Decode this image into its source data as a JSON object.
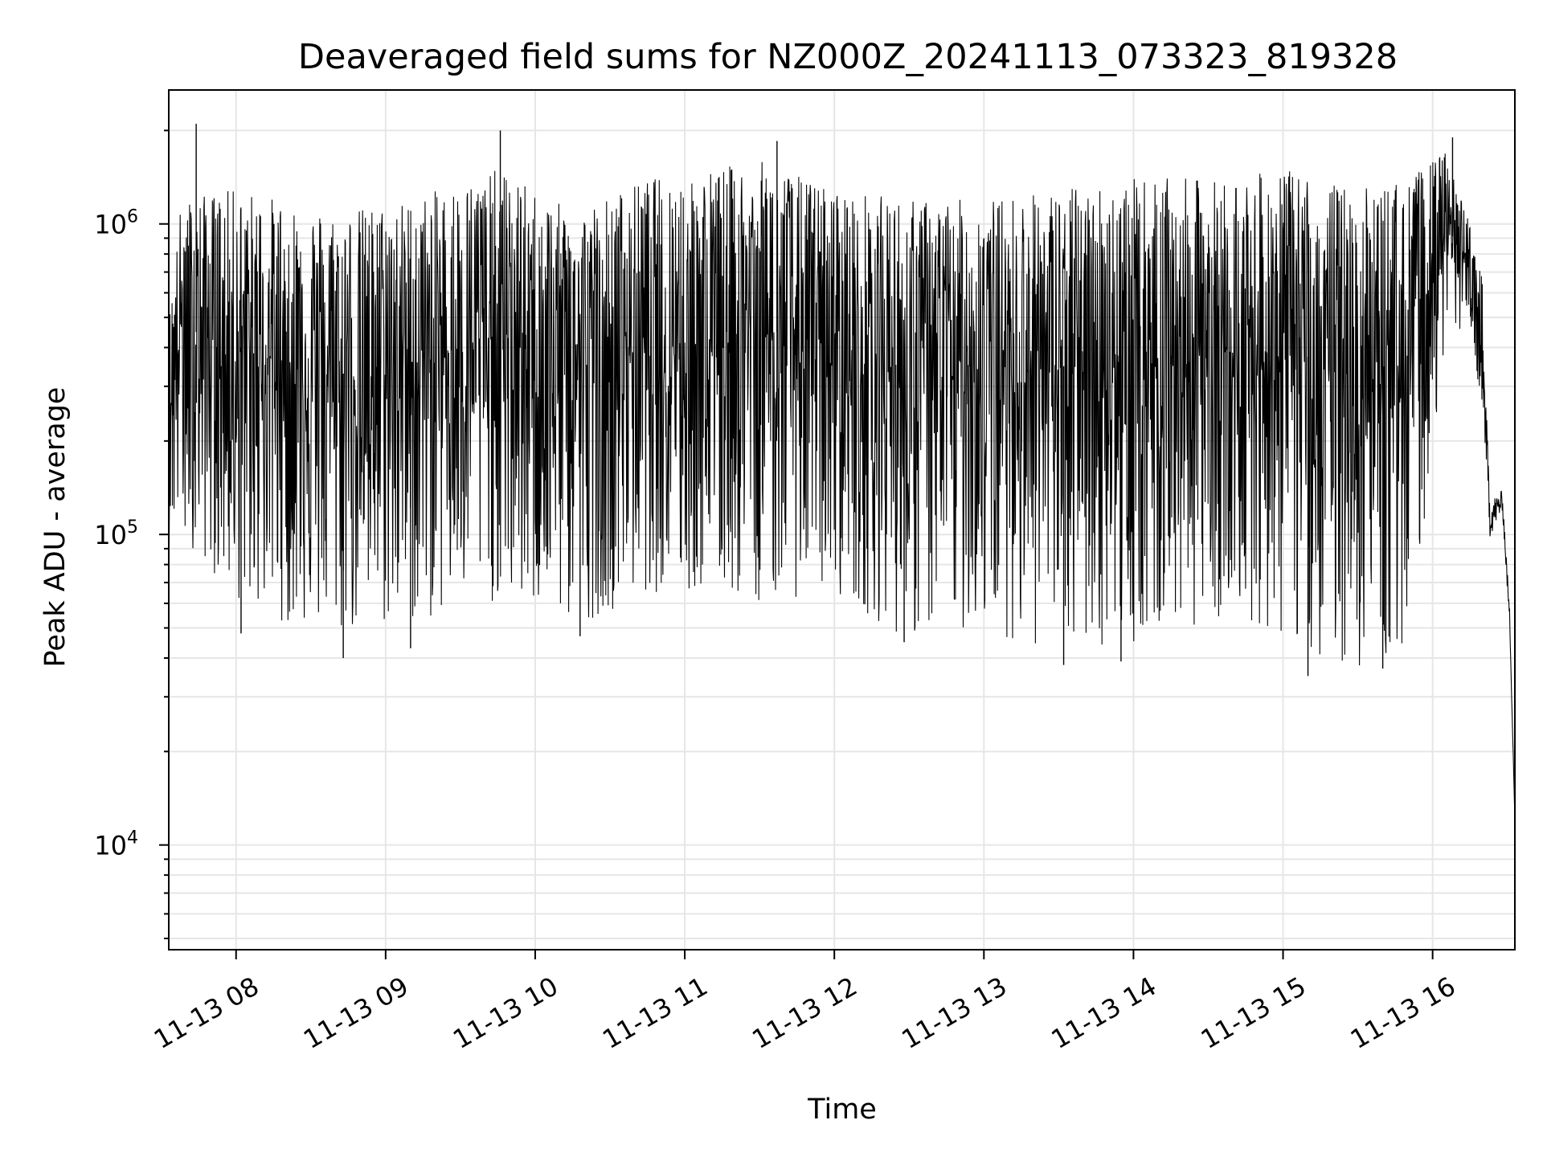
{
  "chart_data": {
    "type": "line",
    "title": "Deaveraged field sums for NZ000Z_20241113_073323_819328",
    "xlabel": "Time",
    "ylabel": "Peak ADU - average",
    "x_type": "time",
    "xlim": [
      "2024-11-13 07:33",
      "2024-11-13 16:33"
    ],
    "x_ticks": [
      {
        "t": "2024-11-13 08:00",
        "label": "11-13 08"
      },
      {
        "t": "2024-11-13 09:00",
        "label": "11-13 09"
      },
      {
        "t": "2024-11-13 10:00",
        "label": "11-13 10"
      },
      {
        "t": "2024-11-13 11:00",
        "label": "11-13 11"
      },
      {
        "t": "2024-11-13 12:00",
        "label": "11-13 12"
      },
      {
        "t": "2024-11-13 13:00",
        "label": "11-13 13"
      },
      {
        "t": "2024-11-13 14:00",
        "label": "11-13 14"
      },
      {
        "t": "2024-11-13 15:00",
        "label": "11-13 15"
      },
      {
        "t": "2024-11-13 16:00",
        "label": "11-13 16"
      }
    ],
    "y_scale": "log",
    "ylim": [
      4600,
      2700000
    ],
    "y_ticks": [
      {
        "value": 10000,
        "base": "10",
        "exp": "4"
      },
      {
        "value": 100000,
        "base": "10",
        "exp": "5"
      },
      {
        "value": 1000000,
        "base": "10",
        "exp": "6"
      }
    ],
    "grid": true,
    "line_color": "#000000",
    "grid_color": "#e6e6e6",
    "envelope": [
      {
        "t": "2024-11-13 07:33",
        "low": 95000,
        "high": 500000
      },
      {
        "t": "2024-11-13 07:38",
        "low": 100000,
        "high": 1200000
      },
      {
        "t": "2024-11-13 08:00",
        "low": 60000,
        "high": 1300000
      },
      {
        "t": "2024-11-13 08:40",
        "low": 45000,
        "high": 1100000
      },
      {
        "t": "2024-11-13 09:10",
        "low": 50000,
        "high": 1200000
      },
      {
        "t": "2024-11-13 09:45",
        "low": 60000,
        "high": 1500000
      },
      {
        "t": "2024-11-13 10:15",
        "low": 50000,
        "high": 1100000
      },
      {
        "t": "2024-11-13 10:45",
        "low": 65000,
        "high": 1400000
      },
      {
        "t": "2024-11-13 11:30",
        "low": 60000,
        "high": 1600000
      },
      {
        "t": "2024-11-13 12:00",
        "low": 65000,
        "high": 1300000
      },
      {
        "t": "2024-11-13 12:30",
        "low": 45000,
        "high": 1200000
      },
      {
        "t": "2024-11-13 13:00",
        "low": 50000,
        "high": 1200000
      },
      {
        "t": "2024-11-13 13:30",
        "low": 40000,
        "high": 1300000
      },
      {
        "t": "2024-11-13 14:00",
        "low": 45000,
        "high": 1400000
      },
      {
        "t": "2024-11-13 14:40",
        "low": 55000,
        "high": 1400000
      },
      {
        "t": "2024-11-13 15:00",
        "low": 45000,
        "high": 1500000
      },
      {
        "t": "2024-11-13 15:30",
        "low": 36000,
        "high": 1300000
      },
      {
        "t": "2024-11-13 15:50",
        "low": 40000,
        "high": 1400000
      },
      {
        "t": "2024-11-13 16:05",
        "low": 400000,
        "high": 1700000
      },
      {
        "t": "2024-11-13 16:15",
        "low": 500000,
        "high": 1000000
      },
      {
        "t": "2024-11-13 16:20",
        "low": 200000,
        "high": 700000
      },
      {
        "t": "2024-11-13 16:23",
        "low": 85000,
        "high": 150000
      },
      {
        "t": "2024-11-13 16:28",
        "low": 110000,
        "high": 150000
      },
      {
        "t": "2024-11-13 16:31",
        "low": 45000,
        "high": 60000
      },
      {
        "t": "2024-11-13 16:33",
        "low": 12000,
        "high": 12000
      }
    ],
    "spikes": [
      {
        "t": "2024-11-13 07:44",
        "value": 2100000
      },
      {
        "t": "2024-11-13 08:02",
        "value": 48000
      },
      {
        "t": "2024-11-13 08:43",
        "value": 40000
      },
      {
        "t": "2024-11-13 09:10",
        "value": 43000
      },
      {
        "t": "2024-11-13 09:46",
        "value": 2000000
      },
      {
        "t": "2024-11-13 10:18",
        "value": 47000
      },
      {
        "t": "2024-11-13 11:37",
        "value": 1850000
      },
      {
        "t": "2024-11-13 12:28",
        "value": 45000
      },
      {
        "t": "2024-11-13 13:32",
        "value": 38000
      },
      {
        "t": "2024-11-13 13:55",
        "value": 39000
      },
      {
        "t": "2024-11-13 15:10",
        "value": 35000
      },
      {
        "t": "2024-11-13 15:40",
        "value": 37000
      },
      {
        "t": "2024-11-13 16:08",
        "value": 1900000
      }
    ]
  }
}
